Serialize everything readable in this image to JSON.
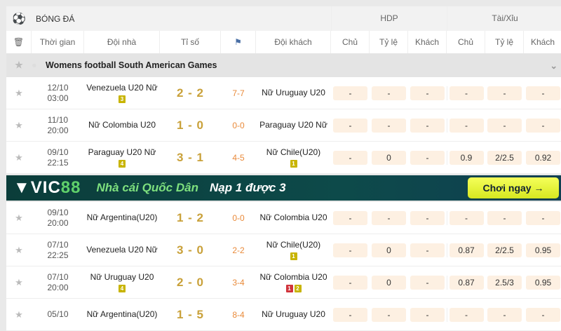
{
  "header": {
    "sport": "BÓNG ĐÁ",
    "hdp": "HDP",
    "taixiu": "Tài/Xỉu"
  },
  "columns": {
    "time": "Thời gian",
    "home": "Đội nhà",
    "score": "Tỉ số",
    "away": "Đội khách",
    "hdp_home": "Chủ",
    "hdp_rate": "Tỷ lệ",
    "hdp_away": "Khách",
    "tx_home": "Chủ",
    "tx_rate": "Tỷ lệ",
    "tx_away": "Khách"
  },
  "league": {
    "name": "Womens football South American Games"
  },
  "matches": [
    {
      "date": "12/10",
      "time": "03:00",
      "home": "Venezuela U20 Nữ",
      "home_badges": [
        {
          "n": "3",
          "c": "yellow"
        }
      ],
      "score": "2-2",
      "corner": "7-7",
      "away": "Nữ Uruguay U20",
      "away_badges": [],
      "odds": [
        "-",
        "-",
        "-",
        "-",
        "-",
        "-"
      ]
    },
    {
      "date": "11/10",
      "time": "20:00",
      "home": "Nữ Colombia U20",
      "home_badges": [],
      "score": "1-0",
      "corner": "0-0",
      "away": "Paraguay U20 Nữ",
      "away_badges": [],
      "odds": [
        "-",
        "-",
        "-",
        "-",
        "-",
        "-"
      ]
    },
    {
      "date": "09/10",
      "time": "22:15",
      "home": "Paraguay U20 Nữ",
      "home_badges": [
        {
          "n": "4",
          "c": "yellow"
        }
      ],
      "score": "3-1",
      "corner": "4-5",
      "away": "Nữ Chile(U20)",
      "away_badges": [
        {
          "n": "1",
          "c": "yellow"
        }
      ],
      "odds": [
        "-",
        "0",
        "-",
        "0.9",
        "2/2.5",
        "0.92"
      ]
    },
    {
      "date": "09/10",
      "time": "20:00",
      "home": "Nữ Argentina(U20)",
      "home_badges": [],
      "score": "1-2",
      "corner": "0-0",
      "away": "Nữ Colombia U20",
      "away_badges": [],
      "odds": [
        "-",
        "-",
        "-",
        "-",
        "-",
        "-"
      ]
    },
    {
      "date": "07/10",
      "time": "22:25",
      "home": "Venezuela U20 Nữ",
      "home_badges": [],
      "score": "3-0",
      "corner": "2-2",
      "away": "Nữ Chile(U20)",
      "away_badges": [
        {
          "n": "1",
          "c": "yellow"
        }
      ],
      "odds": [
        "-",
        "0",
        "-",
        "0.87",
        "2/2.5",
        "0.95"
      ]
    },
    {
      "date": "07/10",
      "time": "20:00",
      "home": "Nữ Uruguay U20",
      "home_badges": [
        {
          "n": "4",
          "c": "yellow"
        }
      ],
      "score": "2-0",
      "corner": "3-4",
      "away": "Nữ Colombia U20",
      "away_badges": [
        {
          "n": "1",
          "c": "red"
        },
        {
          "n": "2",
          "c": "yellow"
        }
      ],
      "odds": [
        "-",
        "0",
        "-",
        "0.87",
        "2.5/3",
        "0.95"
      ]
    },
    {
      "date": "05/10",
      "time": "",
      "home": "Nữ Argentina(U20)",
      "home_badges": [],
      "score": "1-5",
      "corner": "8-4",
      "away": "Nữ Uruguay U20",
      "away_badges": [],
      "odds": [
        "-",
        "-",
        "-",
        "-",
        "-",
        "-"
      ]
    }
  ],
  "banner": {
    "brand_a": "VIC",
    "brand_b": "88",
    "slogan1": "Nhà cái Quốc Dân",
    "slogan2": "Nạp 1 được 3",
    "cta": "Chơi ngay →"
  },
  "icons": {
    "sport": "soccer-ball-icon",
    "delete": "trash-icon",
    "corner": "corner-flag-icon",
    "favorite": "star-icon",
    "collapse": "chevron-down-icon"
  },
  "colors": {
    "score": "#c9a13a",
    "corner": "#e98a3a",
    "odds_bg": "#fdf0e2",
    "badge_yellow": "#c8b400",
    "badge_red": "#d0333b"
  }
}
